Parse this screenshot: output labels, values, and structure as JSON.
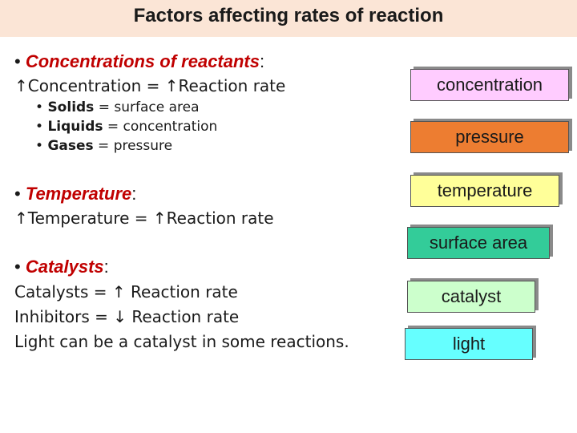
{
  "title": "Factors affecting rates of reaction",
  "sections": {
    "concentrations": {
      "bullet": "•",
      "heading": "Concentrations of reactants",
      "colon": ":",
      "rule": "↑Concentration = ↑Reaction rate",
      "subitems": [
        {
          "bullet": "•",
          "term": "Solids",
          "rest": " = surface area"
        },
        {
          "bullet": "•",
          "term": "Liquids",
          "rest": " = concentration"
        },
        {
          "bullet": "•",
          "term": "Gases",
          "rest": " = pressure"
        }
      ]
    },
    "temperature": {
      "bullet": "•",
      "heading": "Temperature",
      "colon": ":",
      "rule": "↑Temperature = ↑Reaction rate"
    },
    "catalysts": {
      "bullet": "•",
      "heading": "Catalysts",
      "colon": ":",
      "lines": [
        "Catalysts = ↑ Reaction rate",
        "Inhibitors = ↓ Reaction rate",
        "Light can be a catalyst in some reactions."
      ]
    }
  },
  "factors": [
    {
      "label": "concentration",
      "color": "#ffccff"
    },
    {
      "label": "pressure",
      "color": "#ed7d31"
    },
    {
      "label": "temperature",
      "color": "#ffff99"
    },
    {
      "label": "surface area",
      "color": "#33cc99"
    },
    {
      "label": "catalyst",
      "color": "#ccffcc"
    },
    {
      "label": "light",
      "color": "#66ffff"
    }
  ]
}
